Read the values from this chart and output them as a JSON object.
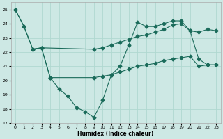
{
  "xlabel": "Humidex (Indice chaleur)",
  "bg_color": "#cde8e4",
  "grid_color": "#b0d8d0",
  "line_color": "#1a6b5a",
  "xlim": [
    -0.5,
    23.5
  ],
  "ylim": [
    17,
    25.5
  ],
  "yticks": [
    17,
    18,
    19,
    20,
    21,
    22,
    23,
    24,
    25
  ],
  "xticks": [
    0,
    1,
    2,
    3,
    4,
    5,
    6,
    7,
    8,
    9,
    10,
    11,
    12,
    13,
    14,
    15,
    16,
    17,
    18,
    19,
    20,
    21,
    22,
    23
  ],
  "line1_x": [
    0,
    1,
    2,
    3,
    4,
    5,
    6,
    7,
    8,
    9,
    10,
    11,
    12,
    13,
    14,
    15,
    16,
    17,
    18,
    19,
    20,
    21,
    22,
    23
  ],
  "line1_y": [
    25.0,
    23.8,
    22.2,
    22.3,
    20.2,
    19.4,
    18.9,
    18.1,
    17.8,
    17.4,
    18.6,
    20.4,
    21.0,
    22.5,
    24.1,
    23.8,
    23.8,
    24.0,
    24.2,
    24.2,
    23.5,
    21.5,
    21.1,
    21.1
  ],
  "line2_x": [
    0,
    1,
    2,
    3,
    9,
    10,
    11,
    12,
    13,
    14,
    15,
    16,
    17,
    18,
    19,
    20,
    21,
    22,
    23
  ],
  "line2_y": [
    25.0,
    23.8,
    22.2,
    22.3,
    22.2,
    22.3,
    22.5,
    22.7,
    22.9,
    23.1,
    23.2,
    23.4,
    23.6,
    23.9,
    24.0,
    23.5,
    23.4,
    23.6,
    23.5
  ],
  "line3_x": [
    2,
    3,
    4,
    9,
    10,
    11,
    12,
    13,
    14,
    15,
    16,
    17,
    18,
    19,
    20,
    21,
    22,
    23
  ],
  "line3_y": [
    22.2,
    22.3,
    20.2,
    20.2,
    20.3,
    20.4,
    20.6,
    20.8,
    21.0,
    21.1,
    21.2,
    21.4,
    21.5,
    21.6,
    21.7,
    21.0,
    21.1,
    21.1
  ]
}
